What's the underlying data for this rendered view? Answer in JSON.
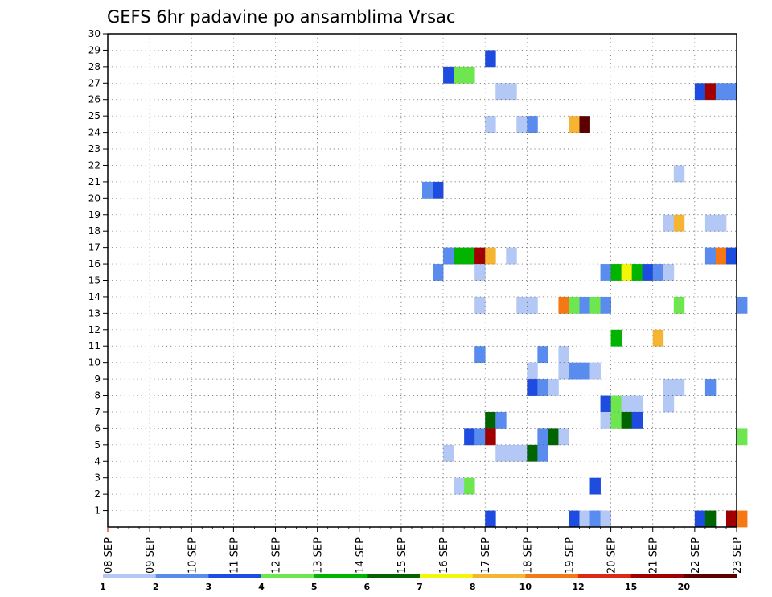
{
  "chart_data": {
    "type": "heatmap",
    "title": "GEFS 6hr padavine po ansamblima Vrsac",
    "x_tick_labels": [
      "08 SEP",
      "09 SEP",
      "10 SEP",
      "11 SEP",
      "12 SEP",
      "13 SEP",
      "14 SEP",
      "15 SEP",
      "16 SEP",
      "17 SEP",
      "18 SEP",
      "19 SEP",
      "20 SEP",
      "21 SEP",
      "22 SEP",
      "23 SEP"
    ],
    "x_step_hours": 6,
    "y_tick_labels": [
      "1",
      "2",
      "3",
      "4",
      "5",
      "6",
      "7",
      "8",
      "9",
      "10",
      "11",
      "12",
      "13",
      "14",
      "15",
      "16",
      "17",
      "18",
      "19",
      "20",
      "21",
      "22",
      "23",
      "24",
      "25",
      "26",
      "27",
      "28",
      "29",
      "30"
    ],
    "y_range": [
      0,
      30
    ],
    "grid": true,
    "colorbar": {
      "labels": [
        "1",
        "2",
        "3",
        "4",
        "5",
        "6",
        "7",
        "8",
        "10",
        "12",
        "15",
        "20"
      ],
      "colors": [
        "#b4c8f5",
        "#5a8cf0",
        "#1e4be0",
        "#6ee650",
        "#00b400",
        "#006400",
        "#f5f50a",
        "#f5b432",
        "#f57814",
        "#dc2814",
        "#a00000",
        "#5a0000"
      ]
    },
    "cells": [
      {
        "x": "17 SEP 00",
        "member": 29,
        "value": 3
      },
      {
        "x": "16 SEP 00",
        "member": 28,
        "value": 3
      },
      {
        "x": "16 SEP 06",
        "member": 28,
        "value": 4
      },
      {
        "x": "16 SEP 12",
        "member": 28,
        "value": 4
      },
      {
        "x": "17 SEP 06",
        "member": 27,
        "value": 1
      },
      {
        "x": "17 SEP 12",
        "member": 27,
        "value": 1
      },
      {
        "x": "22 SEP 00",
        "member": 27,
        "value": 3
      },
      {
        "x": "22 SEP 06",
        "member": 27,
        "value": 15
      },
      {
        "x": "22 SEP 12",
        "member": 27,
        "value": 2
      },
      {
        "x": "22 SEP 18",
        "member": 27,
        "value": 2
      },
      {
        "x": "17 SEP 00",
        "member": 25,
        "value": 1
      },
      {
        "x": "17 SEP 18",
        "member": 25,
        "value": 1
      },
      {
        "x": "18 SEP 00",
        "member": 25,
        "value": 2
      },
      {
        "x": "19 SEP 00",
        "member": 25,
        "value": 8
      },
      {
        "x": "19 SEP 06",
        "member": 25,
        "value": 20
      },
      {
        "x": "21 SEP 12",
        "member": 22,
        "value": 1
      },
      {
        "x": "15 SEP 12",
        "member": 21,
        "value": 2
      },
      {
        "x": "15 SEP 18",
        "member": 21,
        "value": 3
      },
      {
        "x": "21 SEP 06",
        "member": 19,
        "value": 1
      },
      {
        "x": "21 SEP 12",
        "member": 19,
        "value": 8
      },
      {
        "x": "22 SEP 06",
        "member": 19,
        "value": 1
      },
      {
        "x": "22 SEP 12",
        "member": 19,
        "value": 1
      },
      {
        "x": "16 SEP 00",
        "member": 17,
        "value": 2
      },
      {
        "x": "16 SEP 06",
        "member": 17,
        "value": 5
      },
      {
        "x": "16 SEP 12",
        "member": 17,
        "value": 5
      },
      {
        "x": "16 SEP 18",
        "member": 17,
        "value": 15
      },
      {
        "x": "17 SEP 00",
        "member": 17,
        "value": 8
      },
      {
        "x": "17 SEP 12",
        "member": 17,
        "value": 1
      },
      {
        "x": "22 SEP 06",
        "member": 17,
        "value": 2
      },
      {
        "x": "22 SEP 12",
        "member": 17,
        "value": 10
      },
      {
        "x": "22 SEP 18",
        "member": 17,
        "value": 3
      },
      {
        "x": "15 SEP 18",
        "member": 16,
        "value": 2
      },
      {
        "x": "16 SEP 18",
        "member": 16,
        "value": 1
      },
      {
        "x": "19 SEP 18",
        "member": 16,
        "value": 2
      },
      {
        "x": "20 SEP 00",
        "member": 16,
        "value": 5
      },
      {
        "x": "20 SEP 06",
        "member": 16,
        "value": 7
      },
      {
        "x": "20 SEP 12",
        "member": 16,
        "value": 5
      },
      {
        "x": "20 SEP 18",
        "member": 16,
        "value": 3
      },
      {
        "x": "21 SEP 00",
        "member": 16,
        "value": 2
      },
      {
        "x": "21 SEP 06",
        "member": 16,
        "value": 1
      },
      {
        "x": "16 SEP 18",
        "member": 14,
        "value": 1
      },
      {
        "x": "17 SEP 18",
        "member": 14,
        "value": 1
      },
      {
        "x": "18 SEP 00",
        "member": 14,
        "value": 1
      },
      {
        "x": "18 SEP 18",
        "member": 14,
        "value": 10
      },
      {
        "x": "19 SEP 00",
        "member": 14,
        "value": 4
      },
      {
        "x": "19 SEP 06",
        "member": 14,
        "value": 2
      },
      {
        "x": "19 SEP 12",
        "member": 14,
        "value": 4
      },
      {
        "x": "19 SEP 18",
        "member": 14,
        "value": 2
      },
      {
        "x": "21 SEP 12",
        "member": 14,
        "value": 4
      },
      {
        "x": "23 SEP 00",
        "member": 14,
        "value": 2
      },
      {
        "x": "20 SEP 00",
        "member": 12,
        "value": 5
      },
      {
        "x": "21 SEP 00",
        "member": 12,
        "value": 8
      },
      {
        "x": "16 SEP 18",
        "member": 11,
        "value": 2
      },
      {
        "x": "18 SEP 06",
        "member": 11,
        "value": 2
      },
      {
        "x": "18 SEP 18",
        "member": 11,
        "value": 1
      },
      {
        "x": "18 SEP 00",
        "member": 10,
        "value": 1
      },
      {
        "x": "18 SEP 18",
        "member": 10,
        "value": 1
      },
      {
        "x": "19 SEP 00",
        "member": 10,
        "value": 2
      },
      {
        "x": "19 SEP 06",
        "member": 10,
        "value": 2
      },
      {
        "x": "19 SEP 12",
        "member": 10,
        "value": 1
      },
      {
        "x": "18 SEP 00",
        "member": 9,
        "value": 3
      },
      {
        "x": "18 SEP 06",
        "member": 9,
        "value": 2
      },
      {
        "x": "18 SEP 12",
        "member": 9,
        "value": 1
      },
      {
        "x": "21 SEP 06",
        "member": 9,
        "value": 1
      },
      {
        "x": "21 SEP 12",
        "member": 9,
        "value": 1
      },
      {
        "x": "22 SEP 06",
        "member": 9,
        "value": 2
      },
      {
        "x": "19 SEP 18",
        "member": 8,
        "value": 3
      },
      {
        "x": "20 SEP 00",
        "member": 8,
        "value": 4
      },
      {
        "x": "20 SEP 06",
        "member": 8,
        "value": 1
      },
      {
        "x": "20 SEP 12",
        "member": 8,
        "value": 1
      },
      {
        "x": "21 SEP 06",
        "member": 8,
        "value": 1
      },
      {
        "x": "17 SEP 00",
        "member": 7,
        "value": 6
      },
      {
        "x": "17 SEP 06",
        "member": 7,
        "value": 2
      },
      {
        "x": "19 SEP 18",
        "member": 7,
        "value": 1
      },
      {
        "x": "20 SEP 00",
        "member": 7,
        "value": 4
      },
      {
        "x": "20 SEP 06",
        "member": 7,
        "value": 6
      },
      {
        "x": "20 SEP 12",
        "member": 7,
        "value": 3
      },
      {
        "x": "16 SEP 12",
        "member": 6,
        "value": 3
      },
      {
        "x": "16 SEP 18",
        "member": 6,
        "value": 2
      },
      {
        "x": "17 SEP 00",
        "member": 6,
        "value": 15
      },
      {
        "x": "18 SEP 06",
        "member": 6,
        "value": 2
      },
      {
        "x": "18 SEP 12",
        "member": 6,
        "value": 6
      },
      {
        "x": "18 SEP 18",
        "member": 6,
        "value": 1
      },
      {
        "x": "23 SEP 00",
        "member": 6,
        "value": 4
      },
      {
        "x": "16 SEP 00",
        "member": 5,
        "value": 1
      },
      {
        "x": "17 SEP 06",
        "member": 5,
        "value": 1
      },
      {
        "x": "17 SEP 12",
        "member": 5,
        "value": 1
      },
      {
        "x": "17 SEP 18",
        "member": 5,
        "value": 1
      },
      {
        "x": "18 SEP 00",
        "member": 5,
        "value": 6
      },
      {
        "x": "18 SEP 06",
        "member": 5,
        "value": 2
      },
      {
        "x": "16 SEP 06",
        "member": 3,
        "value": 1
      },
      {
        "x": "16 SEP 12",
        "member": 3,
        "value": 4
      },
      {
        "x": "19 SEP 12",
        "member": 3,
        "value": 3
      },
      {
        "x": "17 SEP 00",
        "member": 1,
        "value": 3
      },
      {
        "x": "19 SEP 00",
        "member": 1,
        "value": 3
      },
      {
        "x": "19 SEP 06",
        "member": 1,
        "value": 1
      },
      {
        "x": "19 SEP 12",
        "member": 1,
        "value": 2
      },
      {
        "x": "19 SEP 18",
        "member": 1,
        "value": 1
      },
      {
        "x": "22 SEP 00",
        "member": 1,
        "value": 3
      },
      {
        "x": "22 SEP 06",
        "member": 1,
        "value": 6
      },
      {
        "x": "22 SEP 18",
        "member": 1,
        "value": 15
      },
      {
        "x": "23 SEP 00",
        "member": 1,
        "value": 10
      }
    ]
  }
}
